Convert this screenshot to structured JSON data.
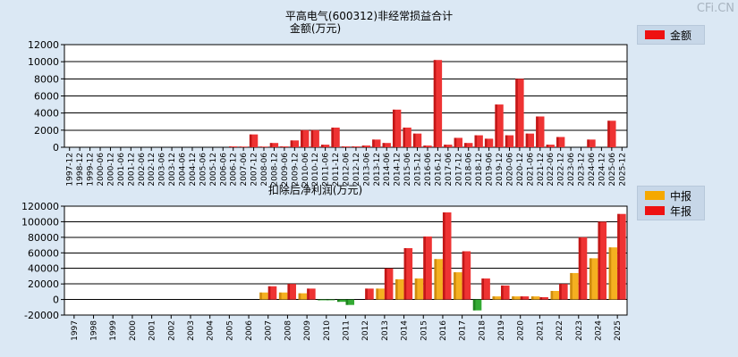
{
  "watermark": "CFi.CN",
  "chart_data": [
    {
      "type": "bar",
      "title": "平高电气(600312)非经常损益合计",
      "subtitle": "金额(万元)",
      "legend": [
        {
          "name": "金额",
          "color": "#ee1111"
        }
      ],
      "ylim": [
        0,
        12000
      ],
      "yticks": [
        0,
        2000,
        4000,
        6000,
        8000,
        10000,
        12000
      ],
      "categories": [
        "1997-12",
        "1998-12",
        "1999-12",
        "2000-06",
        "2000-12",
        "2001-06",
        "2001-12",
        "2002-06",
        "2002-12",
        "2003-06",
        "2003-12",
        "2004-06",
        "2004-12",
        "2005-06",
        "2005-12",
        "2006-06",
        "2006-12",
        "2007-06",
        "2007-12",
        "2008-06",
        "2008-12",
        "2009-06",
        "2009-12",
        "2010-06",
        "2010-12",
        "2011-06",
        "2011-12",
        "2012-06",
        "2012-12",
        "2013-06",
        "2013-12",
        "2014-06",
        "2014-12",
        "2015-06",
        "2015-12",
        "2016-06",
        "2016-12",
        "2017-06",
        "2017-12",
        "2018-06",
        "2018-12",
        "2019-06",
        "2019-12",
        "2020-06",
        "2020-12",
        "2021-06",
        "2021-12",
        "2022-06",
        "2022-12",
        "2023-06",
        "2023-12",
        "2024-06",
        "2024-12",
        "2025-06",
        "2025-12"
      ],
      "values": [
        0,
        0,
        0,
        0,
        0,
        0,
        0,
        0,
        0,
        0,
        0,
        0,
        0,
        0,
        0,
        0,
        100,
        80,
        1500,
        80,
        500,
        100,
        800,
        2000,
        2000,
        300,
        2300,
        100,
        100,
        200,
        900,
        500,
        4400,
        2300,
        1600,
        200,
        10200,
        300,
        1100,
        500,
        1400,
        1000,
        5000,
        1400,
        8000,
        1600,
        3600,
        300,
        1200,
        0,
        0,
        900,
        0,
        3100,
        0
      ]
    },
    {
      "type": "bar",
      "title": "扣除后净利润(万元)",
      "legend": [
        {
          "name": "中报",
          "color": "#f5a800"
        },
        {
          "name": "年报",
          "color": "#ee1111"
        }
      ],
      "ylim": [
        -20000,
        120000
      ],
      "yticks": [
        -20000,
        0,
        20000,
        40000,
        60000,
        80000,
        100000,
        120000
      ],
      "categories": [
        "1997",
        "1998",
        "1999",
        "2000",
        "2001",
        "2002",
        "2003",
        "2004",
        "2005",
        "2006",
        "2007",
        "2008",
        "2009",
        "2010",
        "2011",
        "2012",
        "2013",
        "2014",
        "2015",
        "2016",
        "2017",
        "2018",
        "2019",
        "2020",
        "2021",
        "2022",
        "2023",
        "2024",
        "2025"
      ],
      "series": [
        {
          "name": "中报",
          "values": [
            null,
            null,
            null,
            0,
            0,
            0,
            0,
            0,
            0,
            0,
            9000,
            9000,
            8000,
            -1000,
            -3000,
            0,
            14000,
            26000,
            27000,
            52000,
            35000,
            -14000,
            4000,
            4000,
            4000,
            11000,
            34000,
            53000,
            67000
          ]
        },
        {
          "name": "年报",
          "values": [
            null,
            null,
            null,
            0,
            0,
            0,
            0,
            0,
            0,
            0,
            17000,
            20000,
            14000,
            -1000,
            -7000,
            14000,
            40000,
            66000,
            81000,
            112000,
            62000,
            27000,
            18000,
            4000,
            3000,
            20000,
            80000,
            100000,
            110000
          ]
        }
      ]
    }
  ]
}
